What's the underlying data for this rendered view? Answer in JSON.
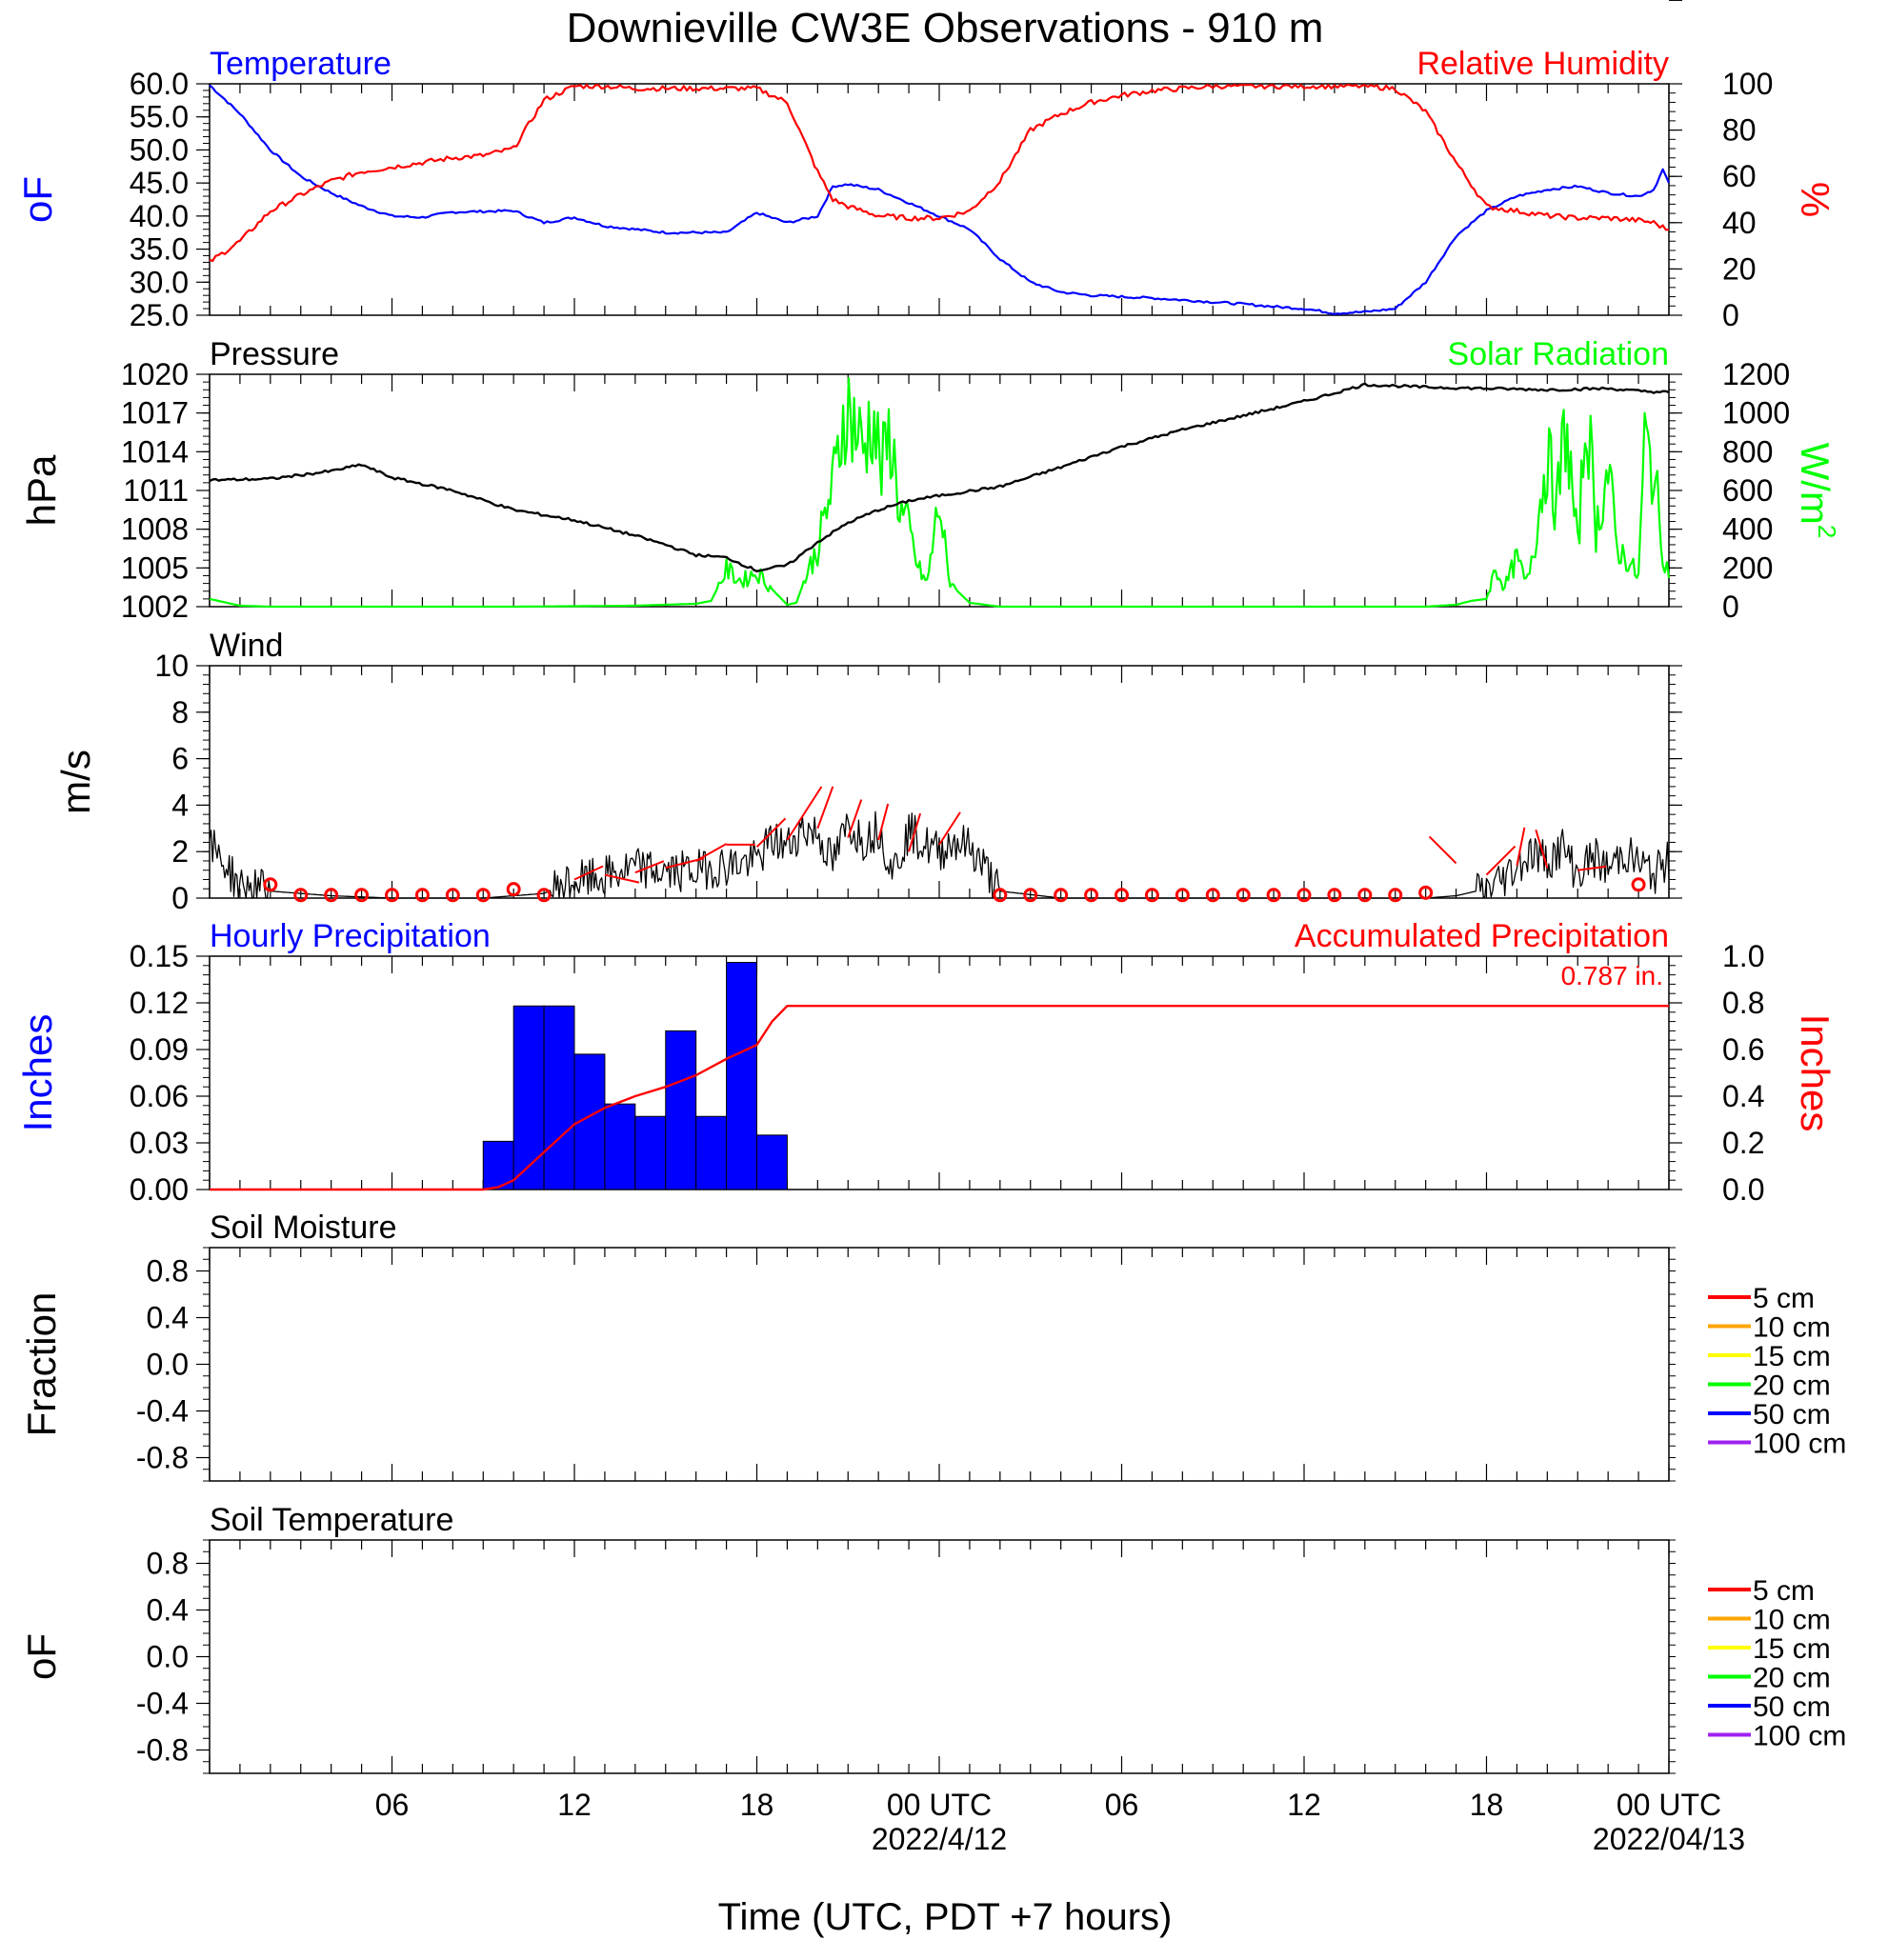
{
  "title": "Downieville CW3E Observations - 910 m",
  "xlabel": "Time (UTC, PDT +7 hours)",
  "x_ticks": [
    {
      "label": "06",
      "hour": 6,
      "date": ""
    },
    {
      "label": "12",
      "hour": 12,
      "date": ""
    },
    {
      "label": "18",
      "hour": 18,
      "date": ""
    },
    {
      "label": "00 UTC",
      "hour": 24,
      "date": "2022/4/12"
    },
    {
      "label": "06",
      "hour": 30,
      "date": ""
    },
    {
      "label": "12",
      "hour": 36,
      "date": ""
    },
    {
      "label": "18",
      "hour": 42,
      "date": ""
    },
    {
      "label": "00 UTC",
      "hour": 48,
      "date": "2022/04/13"
    }
  ],
  "colors": {
    "temperature": "#0000ff",
    "humidity": "#ff0000",
    "pressure": "#000000",
    "solar": "#00ff00",
    "precip_bar": "#0000ff",
    "accum": "#ff0000",
    "wind": "#000000",
    "barb": "#ff0000"
  },
  "chart_data": [
    {
      "type": "line",
      "panel": "temperature-humidity",
      "left_title": "Temperature",
      "right_title": "Relative Humidity",
      "ylabel": "oF",
      "ylabel_right": "%",
      "ylim": [
        25,
        60
      ],
      "ylim_right": [
        0,
        100
      ],
      "yticks": [
        "60.0",
        "55.0",
        "50.0",
        "45.0",
        "40.0",
        "35.0",
        "30.0",
        "25.0"
      ],
      "yticks_right": [
        "100",
        "80",
        "60",
        "40",
        "20",
        "0"
      ],
      "x_hours": [
        0,
        1,
        2,
        3,
        4,
        5,
        6,
        7,
        8,
        9,
        10,
        11,
        12,
        13,
        14,
        15,
        16,
        17,
        17.5,
        18,
        19,
        20,
        20.5,
        21,
        22,
        23,
        24,
        25,
        26,
        27,
        28,
        29,
        30,
        31,
        32,
        33,
        34,
        35,
        36,
        37,
        38,
        39,
        40,
        41,
        42,
        43,
        44,
        45,
        46,
        47,
        47.5,
        47.8,
        48
      ],
      "series": [
        {
          "name": "Temperature",
          "values": [
            59.8,
            55.5,
            50.0,
            46.0,
            43.5,
            41.5,
            40.0,
            39.8,
            40.6,
            40.7,
            40.8,
            39.0,
            39.8,
            38.5,
            38.0,
            37.5,
            37.5,
            37.5,
            39.0,
            40.5,
            39.0,
            40.0,
            44.5,
            44.8,
            44.0,
            42.0,
            40.0,
            38.0,
            33.5,
            30.0,
            28.5,
            28.0,
            27.8,
            27.6,
            27.3,
            27.0,
            26.7,
            26.3,
            26.0,
            25.3,
            25.5,
            26.0,
            30.0,
            37.0,
            40.8,
            43.0,
            44.0,
            44.5,
            43.5,
            43.0,
            44.0,
            47.0,
            45.0
          ]
        },
        {
          "name": "Relative Humidity",
          "values": [
            23,
            32,
            45,
            52,
            58,
            62,
            64,
            66,
            68,
            69,
            72,
            93,
            99,
            99,
            98,
            98,
            98,
            98,
            98,
            98,
            92,
            62,
            50,
            47,
            43,
            42,
            42,
            45,
            58,
            80,
            87,
            92,
            95,
            97,
            98,
            99,
            99,
            99,
            99,
            99,
            99,
            98,
            88,
            66,
            47,
            45,
            43,
            42,
            42,
            41,
            40,
            38,
            37
          ]
        }
      ]
    },
    {
      "type": "line",
      "panel": "pressure-solar",
      "left_title": "Pressure",
      "right_title": "Solar Radiation",
      "ylabel": "hPa",
      "ylabel_right": "W/m",
      "ylabel_right_sup": "2",
      "ylim": [
        1002,
        1020
      ],
      "ylim_right": [
        0,
        1200
      ],
      "yticks": [
        "1020",
        "1017",
        "1014",
        "1011",
        "1008",
        "1005",
        "1002"
      ],
      "yticks_right": [
        "1200",
        "1000",
        "800",
        "600",
        "400",
        "200",
        "0"
      ],
      "x_hours": [
        0,
        2,
        4,
        5,
        6,
        8,
        10,
        12,
        14,
        15,
        16,
        17,
        18,
        19,
        20,
        21,
        22,
        23,
        24,
        26,
        28,
        30,
        32,
        34,
        36,
        38,
        40,
        42,
        44,
        46,
        47,
        48
      ],
      "series": [
        {
          "name": "Pressure",
          "values": [
            1011.8,
            1011.9,
            1012.5,
            1013.0,
            1012.0,
            1011.0,
            1009.5,
            1008.7,
            1007.5,
            1006.8,
            1006.0,
            1005.8,
            1004.8,
            1005.2,
            1007.0,
            1008.5,
            1009.5,
            1010.2,
            1010.6,
            1011.3,
            1012.8,
            1014.4,
            1015.7,
            1016.8,
            1017.9,
            1019.2,
            1019.0,
            1018.9,
            1018.8,
            1018.9,
            1018.7,
            1018.6
          ]
        }
      ],
      "solar_x_hours": [
        0,
        1,
        2,
        6,
        10,
        14,
        16,
        16.5,
        17,
        17.5,
        18,
        18.5,
        19,
        19.3,
        19.6,
        20,
        20.3,
        20.6,
        20.9,
        21.2,
        21.5,
        21.8,
        22.1,
        22.4,
        22.7,
        23,
        23.3,
        23.6,
        24,
        24.3,
        24.6,
        25,
        26,
        30,
        36,
        40,
        41,
        41.5,
        42,
        42.3,
        42.6,
        43,
        43.3,
        43.6,
        44,
        44.3,
        44.6,
        45,
        45.3,
        45.6,
        46,
        46.3,
        46.6,
        47,
        47.2,
        47.5,
        47.8,
        48
      ],
      "solar_values": [
        40,
        5,
        0,
        0,
        0,
        5,
        15,
        30,
        190,
        130,
        180,
        90,
        10,
        20,
        150,
        300,
        500,
        700,
        1050,
        950,
        800,
        1000,
        700,
        900,
        500,
        400,
        200,
        120,
        550,
        150,
        80,
        20,
        0,
        0,
        0,
        0,
        10,
        30,
        40,
        200,
        100,
        250,
        120,
        350,
        800,
        500,
        950,
        300,
        1050,
        400,
        700,
        300,
        250,
        150,
        850,
        700,
        300,
        150
      ]
    },
    {
      "type": "line",
      "panel": "wind",
      "left_title": "Wind",
      "ylabel": "m/s",
      "ylim": [
        0,
        10
      ],
      "yticks": [
        "10",
        "8",
        "6",
        "4",
        "2",
        "0"
      ],
      "x_hours": [
        0,
        0.5,
        1,
        2,
        3,
        4,
        6,
        8,
        9,
        10,
        11,
        11.5,
        12,
        13,
        14,
        15,
        16,
        17,
        18,
        18.5,
        19,
        19.5,
        20,
        20.5,
        21,
        21.5,
        22,
        22.5,
        23,
        23.5,
        24,
        24.5,
        25,
        25.5,
        26,
        28,
        32,
        36,
        40,
        41,
        42,
        42.5,
        43,
        43.5,
        44,
        44.5,
        45,
        45.5,
        46,
        46.5,
        47,
        47.5,
        48
      ],
      "series": [
        {
          "name": "Wind",
          "values": [
            2.3,
            1.5,
            0.5,
            0.3,
            0.2,
            0.1,
            0,
            0,
            0,
            0.1,
            0.2,
            0.5,
            0.7,
            0.9,
            1.3,
            1.1,
            1.2,
            1.4,
            1.6,
            2.5,
            2.2,
            3.0,
            2.8,
            1.5,
            3.2,
            2.5,
            3.0,
            1.2,
            2.9,
            2.3,
            2.0,
            2.5,
            2.2,
            1.3,
            0.3,
            0,
            0,
            0,
            0,
            0.1,
            0.4,
            0.8,
            1.4,
            2.0,
            1.6,
            2.2,
            1.0,
            1.8,
            1.2,
            2.0,
            1.5,
            1.0,
            1.6
          ]
        }
      ],
      "calm_circles_hours": [
        2,
        3,
        4,
        5,
        6,
        7,
        8,
        9,
        10,
        11,
        26,
        27,
        28,
        29,
        30,
        31,
        32,
        33,
        34,
        35,
        36,
        37,
        38,
        39,
        40,
        47
      ],
      "calm_circles_values": [
        0.5,
        0.05,
        0.05,
        0.05,
        0.05,
        0.05,
        0.05,
        0.05,
        0.3,
        0.05,
        0.05,
        0.05,
        0.05,
        0.05,
        0.05,
        0.05,
        0.05,
        0.05,
        0.05,
        0.05,
        0.05,
        0.05,
        0.05,
        0.05,
        0.15,
        0.5
      ],
      "barbs": [
        {
          "hour": 12,
          "speed": 0.8,
          "dx": 30,
          "dy": -14
        },
        {
          "hour": 13,
          "speed": 1.0,
          "dx": 36,
          "dy": 8
        },
        {
          "hour": 14,
          "speed": 1.1,
          "dx": 30,
          "dy": -12
        },
        {
          "hour": 15,
          "speed": 1.3,
          "dx": 40,
          "dy": -10
        },
        {
          "hour": 16,
          "speed": 1.6,
          "dx": 32,
          "dy": -18
        },
        {
          "hour": 17,
          "speed": 2.3,
          "dx": 30,
          "dy": 0
        },
        {
          "hour": 18,
          "speed": 2.2,
          "dx": 30,
          "dy": -30
        },
        {
          "hour": 19,
          "speed": 2.5,
          "dx": 36,
          "dy": -56
        },
        {
          "hour": 20,
          "speed": 3.0,
          "dx": 16,
          "dy": -44
        },
        {
          "hour": 21,
          "speed": 2.6,
          "dx": 14,
          "dy": -40
        },
        {
          "hour": 22,
          "speed": 2.5,
          "dx": 10,
          "dy": -38
        },
        {
          "hour": 23,
          "speed": 2.0,
          "dx": 12,
          "dy": -40
        },
        {
          "hour": 24,
          "speed": 2.3,
          "dx": 22,
          "dy": -34
        },
        {
          "hour": 41,
          "speed": 1.5,
          "dx": -28,
          "dy": -28
        },
        {
          "hour": 42,
          "speed": 1.0,
          "dx": 30,
          "dy": -30
        },
        {
          "hour": 43,
          "speed": 1.4,
          "dx": 8,
          "dy": -40
        },
        {
          "hour": 44,
          "speed": 1.3,
          "dx": -12,
          "dy": -40
        },
        {
          "hour": 45,
          "speed": 1.2,
          "dx": 30,
          "dy": -4
        }
      ]
    },
    {
      "type": "bar",
      "panel": "precipitation",
      "left_title": "Hourly Precipitation",
      "right_title": "Accumulated Precipitation",
      "annotation": "0.787 in.",
      "ylabel": "Inches",
      "ylabel_right": "Inches",
      "ylim": [
        0,
        0.15
      ],
      "ylim_right": [
        0,
        1.0
      ],
      "yticks": [
        "0.15",
        "0.12",
        "0.09",
        "0.06",
        "0.03",
        "0.00"
      ],
      "yticks_right": [
        "1.0",
        "0.8",
        "0.6",
        "0.4",
        "0.2",
        "0.0"
      ],
      "bar_start_hours": [
        9,
        10,
        11,
        12,
        13,
        14,
        15,
        16,
        17,
        18
      ],
      "bar_values": [
        0.031,
        0.118,
        0.118,
        0.087,
        0.055,
        0.047,
        0.102,
        0.047,
        0.146,
        0.035
      ],
      "accum_x_hours": [
        0,
        9,
        9.5,
        10,
        11,
        12,
        13,
        14,
        15,
        16,
        17,
        18,
        18.5,
        19,
        48
      ],
      "accum_values": [
        0,
        0,
        0.01,
        0.04,
        0.16,
        0.28,
        0.35,
        0.4,
        0.44,
        0.49,
        0.56,
        0.62,
        0.72,
        0.787,
        0.787
      ]
    },
    {
      "type": "line",
      "panel": "soil-moisture",
      "left_title": "Soil Moisture",
      "ylabel": "Fraction",
      "ylim": [
        -1,
        1
      ],
      "yticks": [
        "0.8",
        "0.4",
        "0.0",
        "-0.4",
        "-0.8"
      ],
      "legend": [
        {
          "label": "5 cm",
          "color": "#ff0000"
        },
        {
          "label": "10 cm",
          "color": "#ffa500"
        },
        {
          "label": "15 cm",
          "color": "#ffff00"
        },
        {
          "label": "20 cm",
          "color": "#00ff00"
        },
        {
          "label": "50 cm",
          "color": "#0000ff"
        },
        {
          "label": "100 cm",
          "color": "#a020f0"
        }
      ],
      "series": []
    },
    {
      "type": "line",
      "panel": "soil-temperature",
      "left_title": "Soil Temperature",
      "ylabel": "oF",
      "ylim": [
        -1,
        1
      ],
      "yticks": [
        "0.8",
        "0.4",
        "0.0",
        "-0.4",
        "-0.8"
      ],
      "legend": [
        {
          "label": "5 cm",
          "color": "#ff0000"
        },
        {
          "label": "10 cm",
          "color": "#ffa500"
        },
        {
          "label": "15 cm",
          "color": "#ffff00"
        },
        {
          "label": "20 cm",
          "color": "#00ff00"
        },
        {
          "label": "50 cm",
          "color": "#0000ff"
        },
        {
          "label": "100 cm",
          "color": "#a020f0"
        }
      ],
      "series": []
    }
  ]
}
